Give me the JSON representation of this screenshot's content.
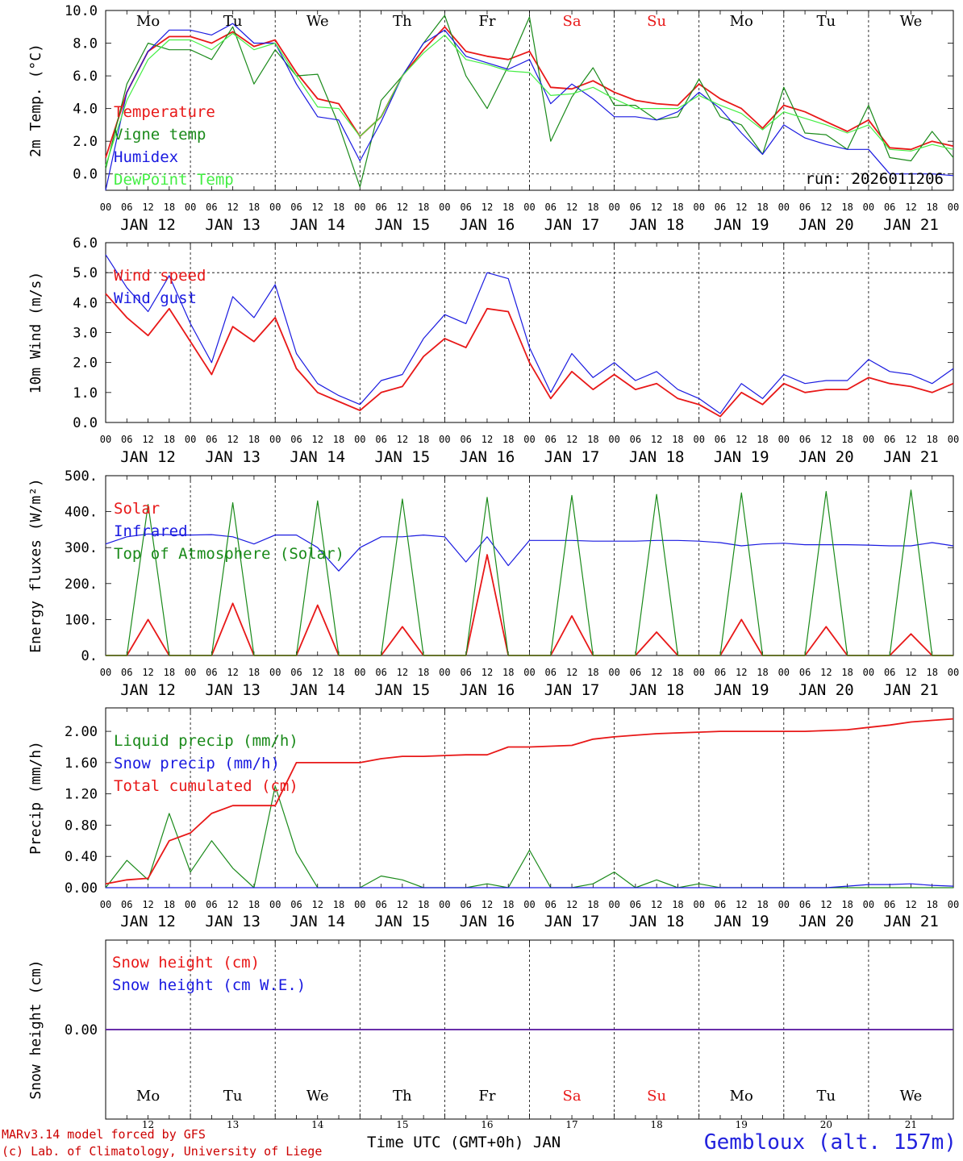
{
  "meta": {
    "run_label": "run: 2026011206",
    "xlabel": "Time UTC (GMT+0h) JAN",
    "credit_line1": "MARv3.14 model forced by GFS",
    "credit_line2": "(c) Lab. of Climatology, University of Liege",
    "station": "Gembloux (alt. 157m)"
  },
  "days": {
    "weekday_labels": [
      "Mo",
      "Tu",
      "We",
      "Th",
      "Fr",
      "Sa",
      "Su",
      "Mo",
      "Tu",
      "We"
    ],
    "weekend_flags": [
      false,
      false,
      false,
      false,
      false,
      true,
      true,
      false,
      false,
      false
    ],
    "date_labels": [
      "JAN 12",
      "JAN 13",
      "JAN 14",
      "JAN 15",
      "JAN 16",
      "JAN 17",
      "JAN 18",
      "JAN 19",
      "JAN 20",
      "JAN 21"
    ],
    "day_numbers": [
      "12",
      "13",
      "14",
      "15",
      "16",
      "17",
      "18",
      "19",
      "20",
      "21"
    ],
    "hour_ticks": [
      "00",
      "06",
      "12",
      "18"
    ],
    "final_tick": "00"
  },
  "colors": {
    "red": "#e81818",
    "green": "#1a8a1a",
    "blue": "#1a1ae0",
    "lightgreen": "#44ee44",
    "grey": "#555555"
  },
  "chart_data": [
    {
      "type": "line",
      "title": "",
      "ylabel": "2m Temp. (°C)",
      "ylim": [
        -1,
        10
      ],
      "y_ticks": [
        0,
        2,
        4,
        6,
        8,
        10
      ],
      "y_tick_labels": [
        "0.0",
        "2.0",
        "4.0",
        "6.0",
        "8.0",
        "10.0"
      ],
      "dashed_ref": [
        0
      ],
      "x": [
        0,
        6,
        12,
        18,
        24,
        30,
        36,
        42,
        48,
        54,
        60,
        66,
        72,
        78,
        84,
        90,
        96,
        102,
        108,
        114,
        120,
        126,
        132,
        138,
        144,
        150,
        156,
        162,
        168,
        174,
        180,
        186,
        192,
        198,
        204,
        210,
        216,
        222,
        228,
        234,
        240
      ],
      "series": [
        {
          "name": "Temperature",
          "color_key": "red",
          "values": [
            1.0,
            5.0,
            7.5,
            8.4,
            8.4,
            8.0,
            8.7,
            7.8,
            8.2,
            6.2,
            4.6,
            4.3,
            2.3,
            3.5,
            6.0,
            7.6,
            9.0,
            7.5,
            7.2,
            7.0,
            7.5,
            5.3,
            5.2,
            5.7,
            5.0,
            4.5,
            4.3,
            4.2,
            5.5,
            4.6,
            4.0,
            2.8,
            4.2,
            3.8,
            3.2,
            2.6,
            3.3,
            1.6,
            1.5,
            2.0,
            1.7
          ]
        },
        {
          "name": "Vigne temp",
          "color_key": "green",
          "values": [
            0.3,
            5.5,
            8.0,
            7.6,
            7.6,
            7.0,
            9.0,
            5.5,
            7.6,
            6.0,
            6.1,
            3.0,
            -0.8,
            4.5,
            6.0,
            8.0,
            9.7,
            6.0,
            4.0,
            6.6,
            9.6,
            2.0,
            4.7,
            6.5,
            4.2,
            4.2,
            3.3,
            3.5,
            5.8,
            3.5,
            3.0,
            1.2,
            5.3,
            2.5,
            2.4,
            1.5,
            4.2,
            1.0,
            0.8,
            2.6,
            1.0
          ]
        },
        {
          "name": "Humidex",
          "color_key": "blue",
          "values": [
            -1.0,
            5.0,
            7.5,
            8.8,
            8.8,
            8.5,
            9.2,
            8.0,
            8.0,
            5.5,
            3.5,
            3.3,
            0.8,
            3.2,
            6.0,
            8.0,
            8.8,
            7.2,
            6.8,
            6.4,
            7.0,
            4.3,
            5.5,
            4.6,
            3.5,
            3.5,
            3.3,
            3.8,
            5.0,
            4.0,
            2.5,
            1.2,
            3.0,
            2.2,
            1.8,
            1.5,
            1.5,
            0.0,
            0.0,
            0.0,
            -0.1
          ]
        },
        {
          "name": "DewPoint Temp",
          "color_key": "lightgreen",
          "values": [
            0.5,
            4.5,
            7.0,
            8.2,
            8.2,
            7.6,
            8.6,
            7.6,
            8.0,
            6.0,
            4.1,
            4.0,
            2.3,
            3.5,
            6.0,
            7.4,
            8.5,
            7.0,
            6.7,
            6.3,
            6.2,
            4.8,
            4.9,
            5.3,
            4.6,
            4.0,
            4.0,
            4.0,
            4.8,
            4.2,
            3.7,
            2.7,
            3.8,
            3.4,
            3.0,
            2.5,
            3.0,
            1.5,
            1.4,
            1.8,
            1.5
          ]
        }
      ],
      "legend": [
        "Temperature",
        "Vigne temp",
        "Humidex",
        "DewPoint Temp"
      ]
    },
    {
      "type": "line",
      "title": "",
      "ylabel": "10m Wind (m/s)",
      "ylim": [
        0,
        6
      ],
      "y_ticks": [
        0,
        1,
        2,
        3,
        4,
        5,
        6
      ],
      "y_tick_labels": [
        "0.0",
        "1.0",
        "2.0",
        "3.0",
        "4.0",
        "5.0",
        "6.0"
      ],
      "dashed_ref": [
        5
      ],
      "x": [
        0,
        6,
        12,
        18,
        24,
        30,
        36,
        42,
        48,
        54,
        60,
        66,
        72,
        78,
        84,
        90,
        96,
        102,
        108,
        114,
        120,
        126,
        132,
        138,
        144,
        150,
        156,
        162,
        168,
        174,
        180,
        186,
        192,
        198,
        204,
        210,
        216,
        222,
        228,
        234,
        240
      ],
      "series": [
        {
          "name": "Wind speed",
          "color_key": "red",
          "values": [
            4.3,
            3.5,
            2.9,
            3.8,
            2.7,
            1.6,
            3.2,
            2.7,
            3.5,
            1.8,
            1.0,
            0.7,
            0.4,
            1.0,
            1.2,
            2.2,
            2.8,
            2.5,
            3.8,
            3.7,
            2.0,
            0.8,
            1.7,
            1.1,
            1.6,
            1.1,
            1.3,
            0.8,
            0.6,
            0.2,
            1.0,
            0.6,
            1.3,
            1.0,
            1.1,
            1.1,
            1.5,
            1.3,
            1.2,
            1.0,
            1.3
          ]
        },
        {
          "name": "Wind gust",
          "color_key": "blue",
          "values": [
            5.6,
            4.5,
            3.7,
            4.9,
            3.3,
            2.0,
            4.2,
            3.5,
            4.6,
            2.3,
            1.3,
            0.9,
            0.6,
            1.4,
            1.6,
            2.8,
            3.6,
            3.3,
            5.0,
            4.8,
            2.5,
            1.0,
            2.3,
            1.5,
            2.0,
            1.4,
            1.7,
            1.1,
            0.8,
            0.3,
            1.3,
            0.8,
            1.6,
            1.3,
            1.4,
            1.4,
            2.1,
            1.7,
            1.6,
            1.3,
            1.8
          ]
        }
      ],
      "legend": [
        "Wind speed",
        "Wind gust"
      ]
    },
    {
      "type": "line",
      "title": "",
      "ylabel": "Energy fluxes (W/m²)",
      "ylim": [
        0,
        500
      ],
      "y_ticks": [
        0,
        100,
        200,
        300,
        400,
        500
      ],
      "y_tick_labels": [
        "0.",
        "100.",
        "200.",
        "300.",
        "400.",
        "500."
      ],
      "dashed_ref": [],
      "x": [
        0,
        6,
        12,
        18,
        24,
        30,
        36,
        42,
        48,
        54,
        60,
        66,
        72,
        78,
        84,
        90,
        96,
        102,
        108,
        114,
        120,
        126,
        132,
        138,
        144,
        150,
        156,
        162,
        168,
        174,
        180,
        186,
        192,
        198,
        204,
        210,
        216,
        222,
        228,
        234,
        240
      ],
      "series": [
        {
          "name": "Solar",
          "color_key": "red",
          "values": [
            0,
            0,
            100,
            0,
            0,
            0,
            145,
            0,
            0,
            0,
            140,
            0,
            0,
            0,
            80,
            0,
            0,
            0,
            280,
            0,
            0,
            0,
            110,
            0,
            0,
            0,
            65,
            0,
            0,
            0,
            100,
            0,
            0,
            0,
            80,
            0,
            0,
            0,
            60,
            0,
            0
          ]
        },
        {
          "name": "Infrared",
          "color_key": "blue",
          "values": [
            310,
            330,
            338,
            336,
            335,
            336,
            330,
            310,
            335,
            335,
            300,
            235,
            300,
            330,
            330,
            335,
            330,
            260,
            330,
            250,
            320,
            320,
            320,
            318,
            318,
            318,
            320,
            320,
            318,
            314,
            305,
            310,
            312,
            308,
            308,
            308,
            307,
            305,
            305,
            314,
            305
          ]
        },
        {
          "name": "Top of Atmosphere (Solar)",
          "color_key": "green",
          "values": [
            0,
            0,
            420,
            0,
            0,
            0,
            425,
            0,
            0,
            0,
            430,
            0,
            0,
            0,
            435,
            0,
            0,
            0,
            440,
            0,
            0,
            0,
            445,
            0,
            0,
            0,
            448,
            0,
            0,
            0,
            452,
            0,
            0,
            0,
            456,
            0,
            0,
            0,
            460,
            0,
            0
          ]
        }
      ],
      "legend": [
        "Solar",
        "Infrared",
        "Top of Atmosphere (Solar)"
      ]
    },
    {
      "type": "line",
      "title": "",
      "ylabel": "Precip (mm/h)",
      "ylim": [
        0,
        2.3
      ],
      "y_ticks": [
        0,
        0.4,
        0.8,
        1.2,
        1.6,
        2.0
      ],
      "y_tick_labels": [
        "0.00",
        "0.40",
        "0.80",
        "1.20",
        "1.60",
        "2.00"
      ],
      "dashed_ref": [],
      "x": [
        0,
        6,
        12,
        18,
        24,
        30,
        36,
        42,
        48,
        54,
        60,
        66,
        72,
        78,
        84,
        90,
        96,
        102,
        108,
        114,
        120,
        126,
        132,
        138,
        144,
        150,
        156,
        162,
        168,
        174,
        180,
        186,
        192,
        198,
        204,
        210,
        216,
        222,
        228,
        234,
        240
      ],
      "series": [
        {
          "name": "Liquid precip (mm/h)",
          "color_key": "green",
          "values": [
            0,
            0.35,
            0.1,
            0.95,
            0.2,
            0.6,
            0.25,
            0,
            1.3,
            0.45,
            0,
            0,
            0,
            0.15,
            0.1,
            0,
            0,
            0,
            0.05,
            0,
            0.48,
            0,
            0,
            0.05,
            0.2,
            0,
            0.1,
            0,
            0.05,
            0,
            0,
            0,
            0,
            0,
            0,
            0,
            0,
            0,
            0,
            0,
            0
          ]
        },
        {
          "name": "Snow precip (mm/h)",
          "color_key": "blue",
          "values": [
            0,
            0,
            0,
            0,
            0,
            0,
            0,
            0,
            0,
            0,
            0,
            0,
            0,
            0,
            0,
            0,
            0,
            0,
            0,
            0,
            0,
            0,
            0,
            0,
            0,
            0,
            0,
            0,
            0,
            0,
            0,
            0,
            0,
            0,
            0,
            0.02,
            0.04,
            0.04,
            0.05,
            0.03,
            0.02
          ]
        },
        {
          "name": "Total cumulated (cm)",
          "color_key": "red",
          "values": [
            0.05,
            0.1,
            0.12,
            0.6,
            0.7,
            0.95,
            1.05,
            1.05,
            1.05,
            1.6,
            1.6,
            1.6,
            1.6,
            1.65,
            1.68,
            1.68,
            1.69,
            1.7,
            1.7,
            1.8,
            1.8,
            1.81,
            1.82,
            1.9,
            1.93,
            1.95,
            1.97,
            1.98,
            1.99,
            2.0,
            2.0,
            2.0,
            2.0,
            2.0,
            2.01,
            2.02,
            2.05,
            2.08,
            2.12,
            2.14,
            2.16
          ]
        }
      ],
      "legend": [
        "Liquid precip (mm/h)",
        "Snow precip (mm/h)",
        "Total cumulated (cm)"
      ]
    },
    {
      "type": "line",
      "title": "",
      "ylabel": "Snow height (cm)",
      "ylim": [
        -1,
        1
      ],
      "y_ticks": [
        0
      ],
      "y_tick_labels": [
        "0.00"
      ],
      "dashed_ref": [],
      "x": [
        0,
        240
      ],
      "series": [
        {
          "name": "Snow height (cm)",
          "color_key": "red",
          "values": [
            0,
            0
          ]
        },
        {
          "name": "Snow height (cm W.E.)",
          "color_key": "blue",
          "values": [
            0,
            0
          ]
        }
      ],
      "legend": [
        "Snow height (cm)",
        "Snow height (cm W.E.)"
      ]
    }
  ]
}
